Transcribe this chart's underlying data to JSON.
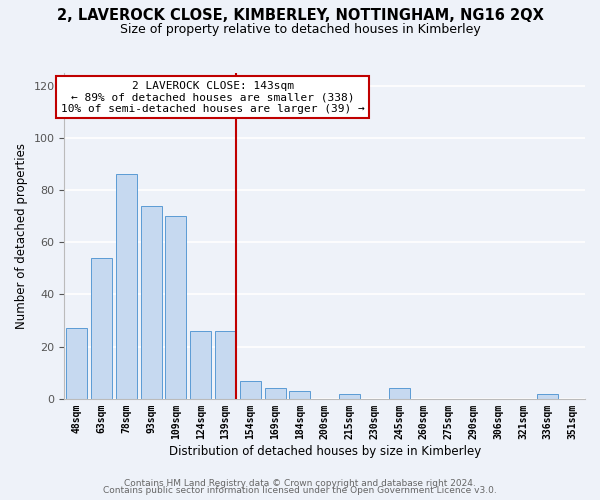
{
  "title": "2, LAVEROCK CLOSE, KIMBERLEY, NOTTINGHAM, NG16 2QX",
  "subtitle": "Size of property relative to detached houses in Kimberley",
  "xlabel": "Distribution of detached houses by size in Kimberley",
  "ylabel": "Number of detached properties",
  "bar_labels": [
    "48sqm",
    "63sqm",
    "78sqm",
    "93sqm",
    "109sqm",
    "124sqm",
    "139sqm",
    "154sqm",
    "169sqm",
    "184sqm",
    "200sqm",
    "215sqm",
    "230sqm",
    "245sqm",
    "260sqm",
    "275sqm",
    "290sqm",
    "306sqm",
    "321sqm",
    "336sqm",
    "351sqm"
  ],
  "bar_values": [
    27,
    54,
    86,
    74,
    70,
    26,
    26,
    7,
    4,
    3,
    0,
    2,
    0,
    4,
    0,
    0,
    0,
    0,
    0,
    2,
    0
  ],
  "bar_color": "#c6d9f0",
  "bar_edge_color": "#5b9bd5",
  "vline_x_idx": 6,
  "vline_color": "#c00000",
  "annotation_line1": "2 LAVEROCK CLOSE: 143sqm",
  "annotation_line2": "← 89% of detached houses are smaller (338)",
  "annotation_line3": "10% of semi-detached houses are larger (39) →",
  "annotation_box_color": "#ffffff",
  "annotation_box_edge": "#c00000",
  "ylim": [
    0,
    125
  ],
  "yticks": [
    0,
    20,
    40,
    60,
    80,
    100,
    120
  ],
  "footer1": "Contains HM Land Registry data © Crown copyright and database right 2024.",
  "footer2": "Contains public sector information licensed under the Open Government Licence v3.0.",
  "bg_color": "#eef2f9",
  "grid_color": "#ffffff",
  "title_fontsize": 10.5,
  "subtitle_fontsize": 9,
  "axis_label_fontsize": 8.5,
  "tick_fontsize": 7,
  "annotation_fontsize": 8,
  "footer_fontsize": 6.5
}
